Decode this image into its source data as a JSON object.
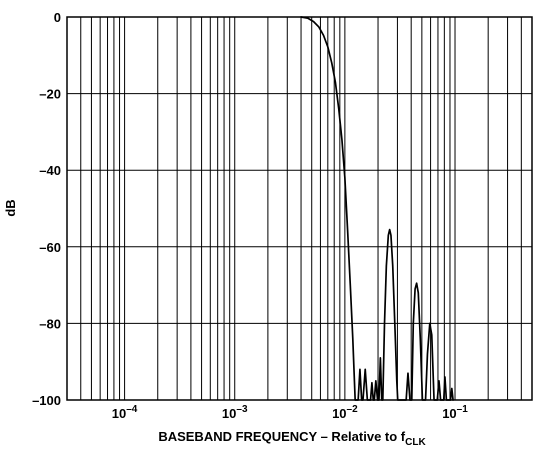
{
  "chart_data": {
    "type": "line",
    "title": "",
    "xlabel": {
      "main": "BASEBAND FREQUENCY – Relative to f",
      "subscript": "CLK"
    },
    "ylabel": "dB",
    "x_scale": "log",
    "xlim": [
      3e-05,
      0.5
    ],
    "ylim": [
      -100,
      0
    ],
    "y_ticks": [
      0,
      -20,
      -40,
      -60,
      -80,
      -100
    ],
    "y_tick_labels": [
      "0",
      "–20",
      "–40",
      "–60",
      "–80",
      "–100"
    ],
    "x_ticks": [
      {
        "value": 0.0001,
        "base": "10",
        "exp": "–4"
      },
      {
        "value": 0.001,
        "base": "10",
        "exp": "–3"
      },
      {
        "value": 0.01,
        "base": "10",
        "exp": "–2"
      },
      {
        "value": 0.1,
        "base": "10",
        "exp": "–1"
      }
    ],
    "grid": true,
    "series": [
      {
        "line_color": "#000000",
        "points": [
          [
            0.004,
            0.0
          ],
          [
            0.0046,
            -0.3
          ],
          [
            0.0052,
            -1.2
          ],
          [
            0.0058,
            -2.6
          ],
          [
            0.0064,
            -4.8
          ],
          [
            0.007,
            -7.8
          ],
          [
            0.0076,
            -12
          ],
          [
            0.0082,
            -17
          ],
          [
            0.0088,
            -24
          ],
          [
            0.0094,
            -32
          ],
          [
            0.01,
            -42
          ],
          [
            0.0106,
            -56
          ],
          [
            0.0112,
            -70
          ],
          [
            0.0118,
            -84
          ],
          [
            0.0124,
            -100
          ],
          [
            0.0132,
            -100
          ],
          [
            0.0137,
            -92
          ],
          [
            0.0142,
            -100
          ],
          [
            0.0146,
            -100
          ],
          [
            0.0153,
            -92
          ],
          [
            0.016,
            -100
          ],
          [
            0.0171,
            -100
          ],
          [
            0.0176,
            -95.5
          ],
          [
            0.0181,
            -100
          ],
          [
            0.0185,
            -100
          ],
          [
            0.0191,
            -95
          ],
          [
            0.0198,
            -100
          ],
          [
            0.0204,
            -100
          ],
          [
            0.021,
            -89
          ],
          [
            0.0216,
            -100
          ],
          [
            0.0221,
            -100
          ],
          [
            0.0229,
            -80
          ],
          [
            0.0238,
            -65
          ],
          [
            0.0248,
            -57
          ],
          [
            0.0255,
            -55.5
          ],
          [
            0.0262,
            -57
          ],
          [
            0.0272,
            -65
          ],
          [
            0.0284,
            -80
          ],
          [
            0.0296,
            -95
          ],
          [
            0.0302,
            -100
          ],
          [
            0.036,
            -100
          ],
          [
            0.0374,
            -93
          ],
          [
            0.039,
            -100
          ],
          [
            0.0405,
            -100
          ],
          [
            0.0418,
            -80
          ],
          [
            0.0434,
            -71
          ],
          [
            0.0448,
            -69.5
          ],
          [
            0.0464,
            -72
          ],
          [
            0.0484,
            -84
          ],
          [
            0.0506,
            -100
          ],
          [
            0.054,
            -100
          ],
          [
            0.0562,
            -88
          ],
          [
            0.059,
            -80
          ],
          [
            0.0615,
            -83
          ],
          [
            0.0645,
            -100
          ],
          [
            0.069,
            -100
          ],
          [
            0.0715,
            -95
          ],
          [
            0.074,
            -100
          ],
          [
            0.079,
            -100
          ],
          [
            0.081,
            -94
          ],
          [
            0.0835,
            -100
          ],
          [
            0.091,
            -100
          ],
          [
            0.0935,
            -97
          ],
          [
            0.096,
            -100
          ]
        ]
      }
    ]
  }
}
